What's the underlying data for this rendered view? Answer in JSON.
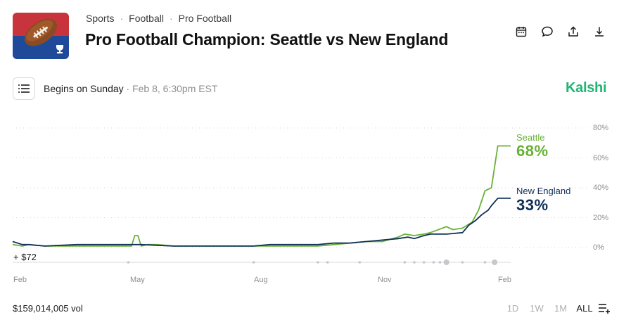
{
  "breadcrumb": [
    "Sports",
    "Football",
    "Pro Football"
  ],
  "title": "Pro Football Champion: Seattle vs New England",
  "actions": [
    "calendar-icon",
    "comment-icon",
    "share-icon",
    "download-icon"
  ],
  "schedule": {
    "label": "Begins on Sunday",
    "date": " · Feb 8, 6:30pm EST"
  },
  "brand": "Kalshi",
  "delta_label": "+ $72",
  "volume_label": "$159,014,005 vol",
  "range_buttons": [
    "1D",
    "1W",
    "1M",
    "ALL"
  ],
  "active_range": "ALL",
  "colors": {
    "seattle": "#69b135",
    "new_england": "#0f2f57",
    "brand": "#22b573"
  },
  "chart_data": {
    "type": "line",
    "y_ticks": [
      "80%",
      "60%",
      "40%",
      "20%",
      "0%"
    ],
    "ylim": [
      0,
      80
    ],
    "x_ticks": [
      "Feb",
      "May",
      "Aug",
      "Nov",
      "Feb"
    ],
    "grid": true,
    "series": [
      {
        "name": "Seattle",
        "end_label": "68%",
        "values": [
          [
            0,
            2
          ],
          [
            3,
            1
          ],
          [
            5,
            2
          ],
          [
            10,
            1
          ],
          [
            20,
            1
          ],
          [
            30,
            1
          ],
          [
            35,
            1
          ],
          [
            37,
            1
          ],
          [
            38,
            8
          ],
          [
            39,
            8
          ],
          [
            40,
            1
          ],
          [
            42,
            2
          ],
          [
            45,
            2
          ],
          [
            50,
            1
          ],
          [
            60,
            1
          ],
          [
            75,
            1
          ],
          [
            80,
            1
          ],
          [
            85,
            1
          ],
          [
            90,
            1
          ],
          [
            95,
            1
          ],
          [
            100,
            2
          ],
          [
            105,
            3
          ],
          [
            110,
            4
          ],
          [
            115,
            4
          ],
          [
            120,
            7
          ],
          [
            122,
            9
          ],
          [
            125,
            8
          ],
          [
            128,
            9
          ],
          [
            130,
            10
          ],
          [
            135,
            14
          ],
          [
            137,
            12
          ],
          [
            140,
            13
          ],
          [
            143,
            17
          ],
          [
            145,
            25
          ],
          [
            147,
            38
          ],
          [
            149,
            40
          ],
          [
            151,
            68
          ],
          [
            155,
            68
          ]
        ]
      },
      {
        "name": "New England",
        "end_label": "33%",
        "values": [
          [
            0,
            4
          ],
          [
            3,
            2
          ],
          [
            5,
            2
          ],
          [
            10,
            1
          ],
          [
            20,
            2
          ],
          [
            30,
            2
          ],
          [
            40,
            2
          ],
          [
            50,
            1
          ],
          [
            60,
            1
          ],
          [
            75,
            1
          ],
          [
            80,
            2
          ],
          [
            85,
            2
          ],
          [
            90,
            2
          ],
          [
            95,
            2
          ],
          [
            100,
            3
          ],
          [
            105,
            3
          ],
          [
            110,
            4
          ],
          [
            115,
            5
          ],
          [
            120,
            6
          ],
          [
            123,
            7
          ],
          [
            125,
            6
          ],
          [
            128,
            8
          ],
          [
            130,
            9
          ],
          [
            135,
            9
          ],
          [
            140,
            10
          ],
          [
            142,
            15
          ],
          [
            144,
            18
          ],
          [
            146,
            22
          ],
          [
            148,
            25
          ],
          [
            149,
            28
          ],
          [
            151,
            33
          ],
          [
            155,
            33
          ]
        ]
      }
    ]
  }
}
